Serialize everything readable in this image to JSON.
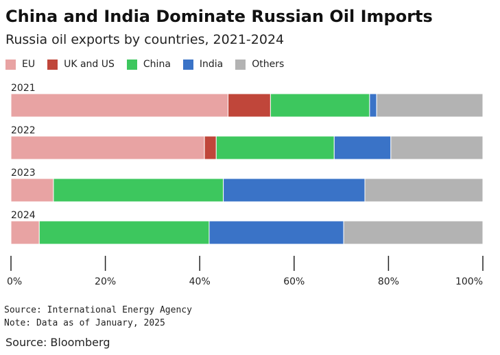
{
  "title": "China and India Dominate Russian Oil Imports",
  "subtitle": "Russia oil exports by countries, 2021-2024",
  "source": "Source: International Energy Agency",
  "note": "Note: Data as of January, 2025",
  "credit": "Source: Bloomberg",
  "chart_data": {
    "type": "bar",
    "orientation": "horizontal",
    "stacked": true,
    "title": "China and India Dominate Russian Oil Imports",
    "subtitle": "Russia oil exports by countries, 2021-2024",
    "categories": [
      "2021",
      "2022",
      "2023",
      "2024"
    ],
    "series": [
      {
        "name": "EU",
        "color": "#e8a3a3",
        "values": [
          46,
          41,
          9,
          6
        ]
      },
      {
        "name": "UK and US",
        "color": "#c0463a",
        "values": [
          9,
          2.5,
          0,
          0
        ]
      },
      {
        "name": "China",
        "color": "#3dc75e",
        "values": [
          21,
          25,
          36,
          36
        ]
      },
      {
        "name": "India",
        "color": "#3a73c7",
        "values": [
          1.5,
          12,
          30,
          28.5
        ]
      },
      {
        "name": "Others",
        "color": "#b3b3b3",
        "values": [
          22.5,
          19.5,
          25,
          29.5
        ]
      }
    ],
    "xlim": [
      0,
      100
    ],
    "xticks": [
      "0%",
      "20%",
      "40%",
      "60%",
      "80%",
      "100%"
    ],
    "legend_position": "top-left",
    "grid": false
  }
}
